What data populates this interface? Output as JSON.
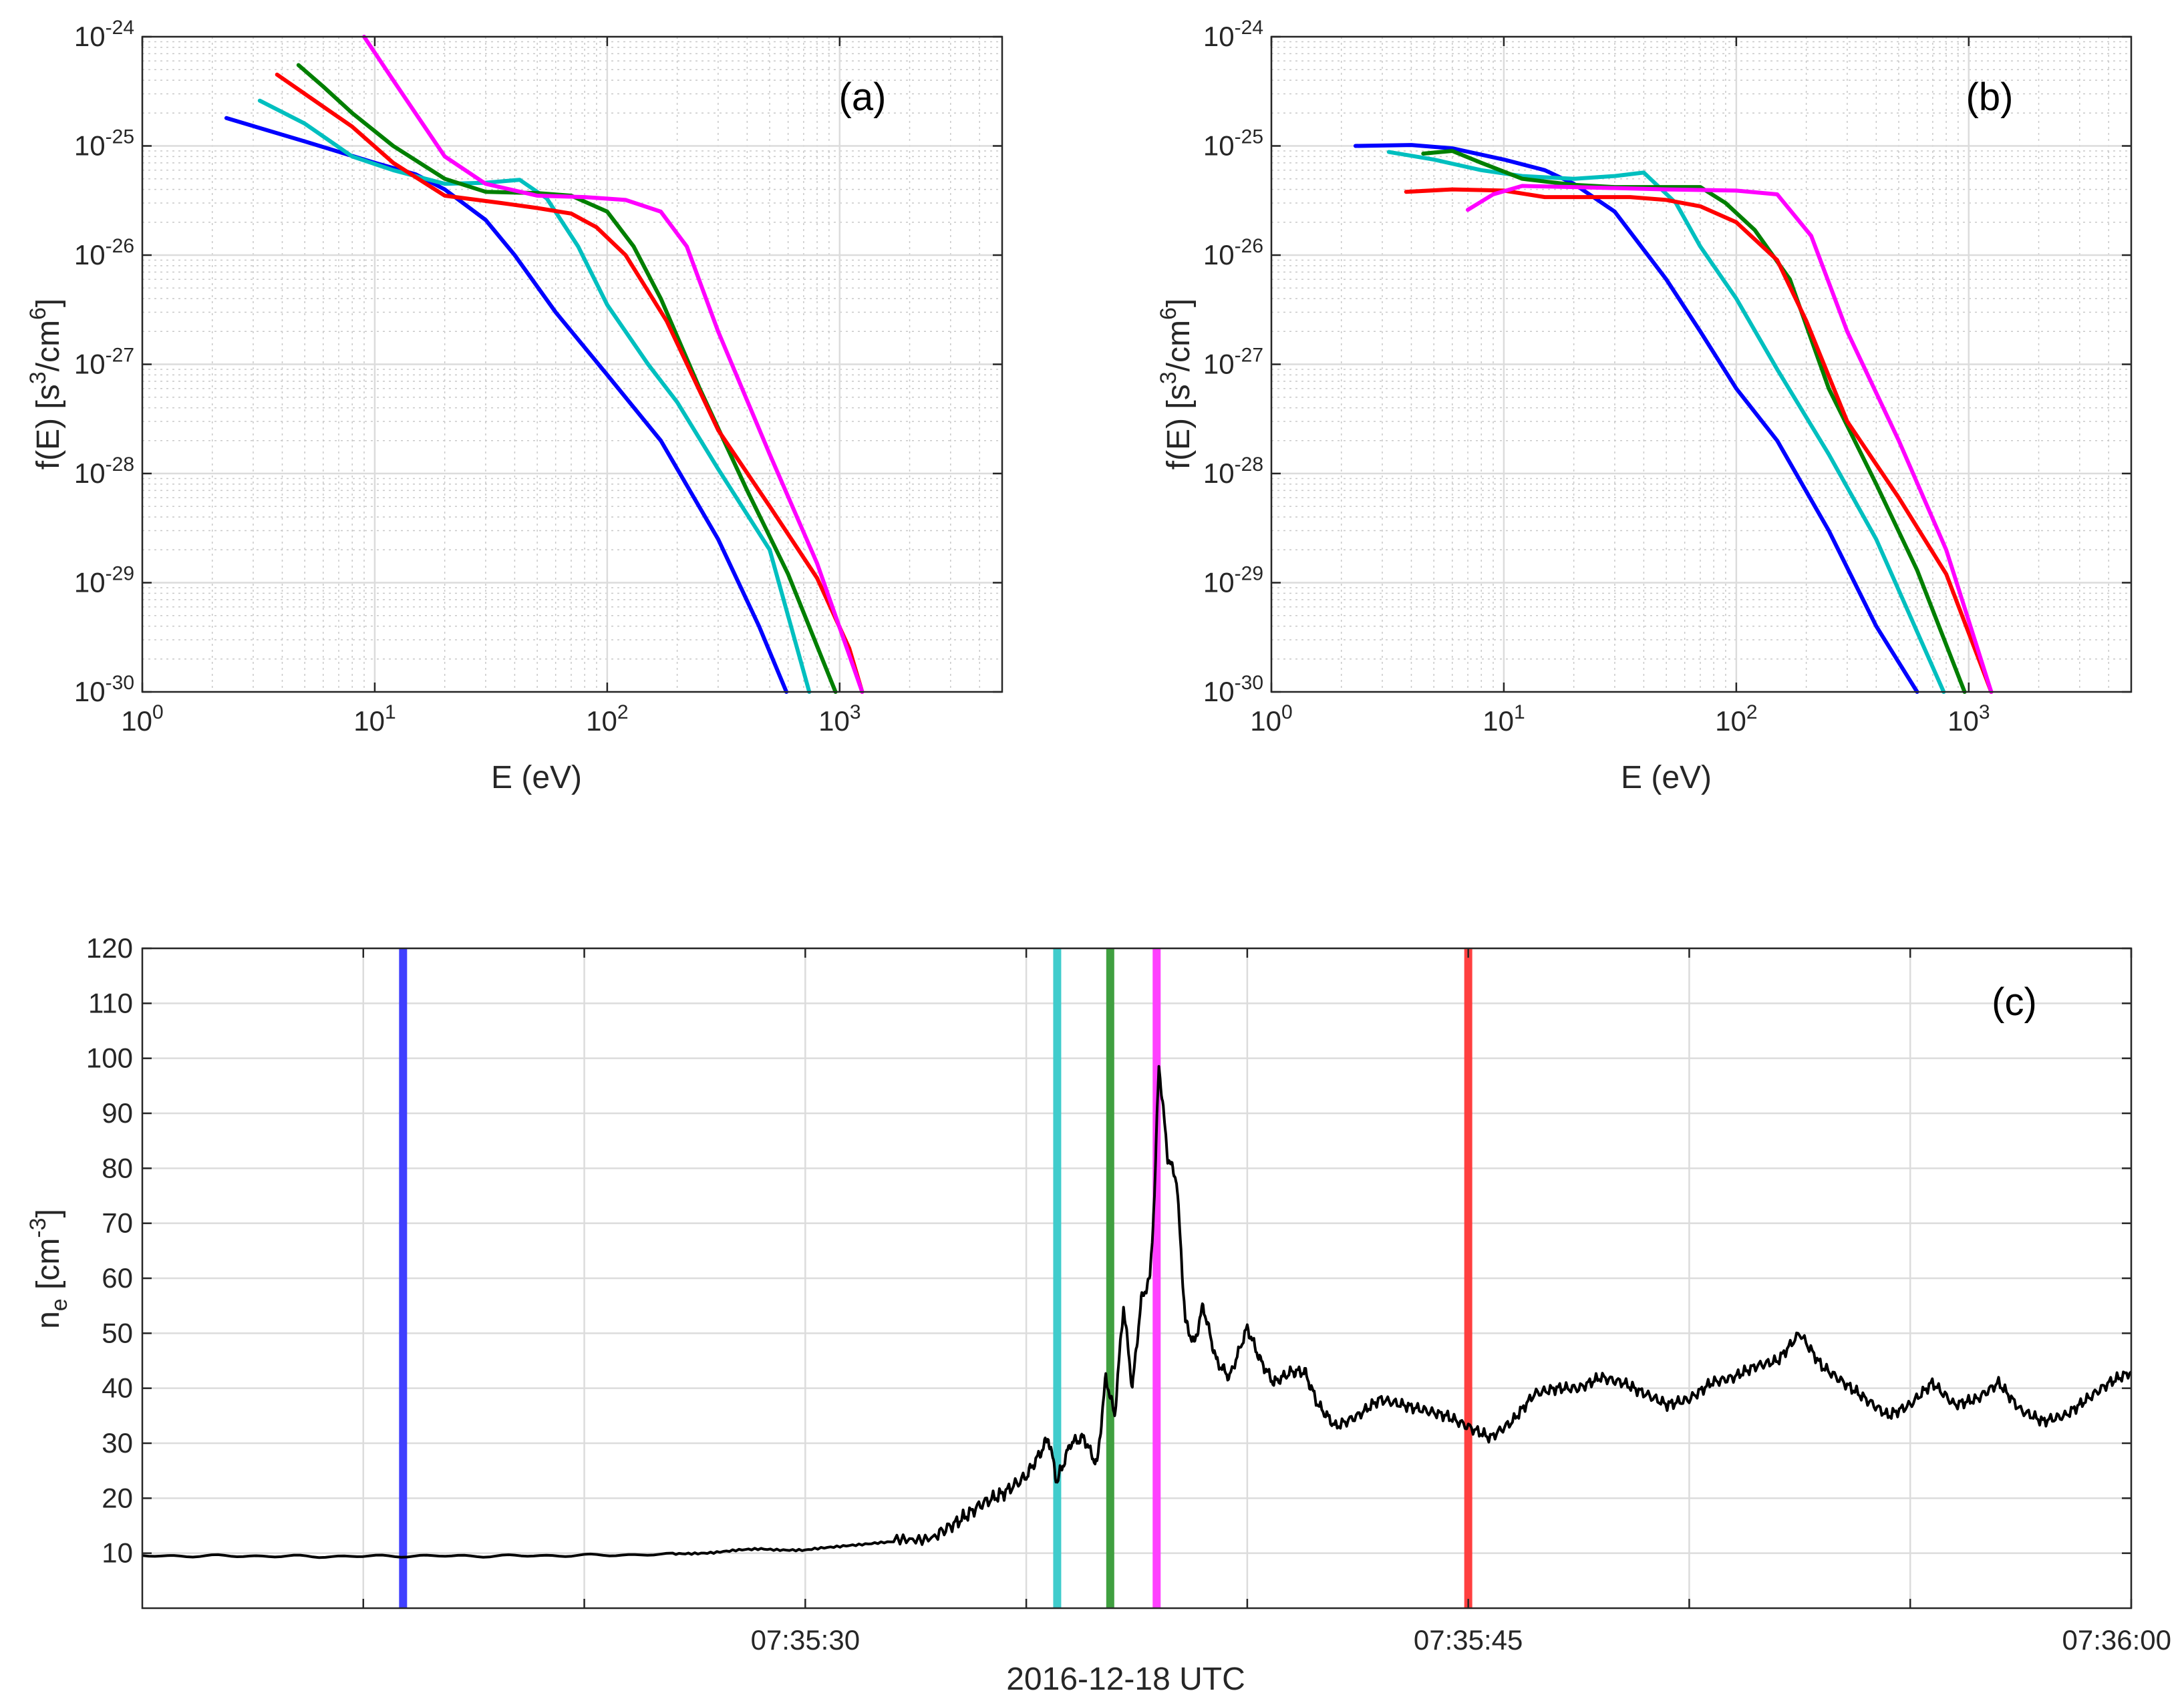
{
  "colors": {
    "blue": "#0000ff",
    "cyan": "#00bfbf",
    "green": "#007f00",
    "red": "#ff0000",
    "magenta": "#ff00ff",
    "marker_blue": "#4040ff",
    "marker_cyan": "#40cccc",
    "marker_green": "#40a040",
    "marker_magenta": "#ff40ff",
    "marker_red": "#ff4040",
    "density": "#000000"
  },
  "chart_data": [
    {
      "id": "a",
      "type": "line",
      "panel_label": "(a)",
      "xlabel": "E (eV)",
      "ylabel": "f(E) [s",
      "ylabel_sup1": "3",
      "ylabel_mid": "/cm",
      "ylabel_sup2": "6",
      "ylabel_end": "]",
      "xscale": "log",
      "yscale": "log",
      "xlim": [
        1,
        5000
      ],
      "ylim": [
        1e-30,
        1e-24
      ],
      "grid": true,
      "xticks": [
        {
          "base": "10",
          "exp": "0"
        },
        {
          "base": "10",
          "exp": "1"
        },
        {
          "base": "10",
          "exp": "2"
        },
        {
          "base": "10",
          "exp": "3"
        }
      ],
      "yticks": [
        {
          "base": "10",
          "exp": "-30"
        },
        {
          "base": "10",
          "exp": "-29"
        },
        {
          "base": "10",
          "exp": "-28"
        },
        {
          "base": "10",
          "exp": "-27"
        },
        {
          "base": "10",
          "exp": "-26"
        },
        {
          "base": "10",
          "exp": "-25"
        },
        {
          "base": "10",
          "exp": "-24"
        }
      ],
      "series": [
        {
          "name": "blue",
          "color": "#0000ff",
          "x": [
            2.3,
            5,
            10,
            15,
            20,
            30,
            40,
            60,
            100,
            170,
            300,
            450,
            590
          ],
          "y": [
            1.8e-25,
            1.1e-25,
            7e-26,
            5.5e-26,
            4e-26,
            2.1e-26,
            1e-26,
            3e-27,
            8e-28,
            2e-28,
            2.5e-29,
            4e-30,
            1e-30
          ]
        },
        {
          "name": "cyan",
          "color": "#00bfbf",
          "x": [
            3.2,
            5,
            8,
            12,
            20,
            30,
            42,
            55,
            75,
            100,
            150,
            200,
            300,
            500,
            740
          ],
          "y": [
            2.6e-25,
            1.6e-25,
            8e-26,
            6e-26,
            4.5e-26,
            4.6e-26,
            4.9e-26,
            3.3e-26,
            1.2e-26,
            3.5e-27,
            1e-27,
            4.5e-28,
            1.1e-28,
            2e-29,
            1e-30
          ]
        },
        {
          "name": "green",
          "color": "#007f00",
          "x": [
            4.7,
            6,
            8,
            12,
            20,
            30,
            50,
            70,
            100,
            130,
            170,
            250,
            400,
            600,
            960
          ],
          "y": [
            5.5e-25,
            3.5e-25,
            2e-25,
            1e-25,
            5e-26,
            3.8e-26,
            3.7e-26,
            3.5e-26,
            2.5e-26,
            1.2e-26,
            4e-27,
            6e-28,
            7e-29,
            1.2e-29,
            1e-30
          ]
        },
        {
          "name": "red",
          "color": "#ff0000",
          "x": [
            3.8,
            5,
            8,
            12,
            20,
            35,
            50,
            70,
            90,
            120,
            180,
            300,
            500,
            800,
            1100,
            1250
          ],
          "y": [
            4.5e-25,
            3e-25,
            1.5e-25,
            7e-26,
            3.5e-26,
            3e-26,
            2.7e-26,
            2.4e-26,
            1.8e-26,
            1e-26,
            2.5e-27,
            2.5e-28,
            5e-29,
            1.1e-29,
            2.5e-30,
            1e-30
          ]
        },
        {
          "name": "magenta",
          "color": "#ff00ff",
          "x": [
            9,
            12,
            20,
            30,
            50,
            80,
            120,
            170,
            220,
            300,
            500,
            800,
            1250
          ],
          "y": [
            1e-24,
            4e-25,
            8e-26,
            4.5e-26,
            3.5e-26,
            3.4e-26,
            3.2e-26,
            2.5e-26,
            1.2e-26,
            2e-27,
            1.5e-28,
            1.5e-29,
            1e-30
          ]
        }
      ]
    },
    {
      "id": "b",
      "type": "line",
      "panel_label": "(b)",
      "xlabel": "E (eV)",
      "ylabel": "f(E) [s",
      "ylabel_sup1": "3",
      "ylabel_mid": "/cm",
      "ylabel_sup2": "6",
      "ylabel_end": "]",
      "xscale": "log",
      "yscale": "log",
      "xlim": [
        1,
        5000
      ],
      "ylim": [
        1e-30,
        1e-24
      ],
      "grid": true,
      "xticks": [
        {
          "base": "10",
          "exp": "0"
        },
        {
          "base": "10",
          "exp": "1"
        },
        {
          "base": "10",
          "exp": "2"
        },
        {
          "base": "10",
          "exp": "3"
        }
      ],
      "yticks": [
        {
          "base": "10",
          "exp": "-30"
        },
        {
          "base": "10",
          "exp": "-29"
        },
        {
          "base": "10",
          "exp": "-28"
        },
        {
          "base": "10",
          "exp": "-27"
        },
        {
          "base": "10",
          "exp": "-26"
        },
        {
          "base": "10",
          "exp": "-25"
        },
        {
          "base": "10",
          "exp": "-24"
        }
      ],
      "series": [
        {
          "name": "blue",
          "color": "#0000ff",
          "x": [
            2.3,
            4,
            6,
            10,
            15,
            20,
            30,
            50,
            70,
            100,
            150,
            250,
            400,
            600
          ],
          "y": [
            1e-25,
            1.02e-25,
            9.5e-26,
            7.5e-26,
            6e-26,
            4.5e-26,
            2.5e-26,
            6e-27,
            2e-27,
            6e-28,
            2e-28,
            3e-29,
            4e-30,
            1e-30
          ]
        },
        {
          "name": "cyan",
          "color": "#00bfbf",
          "x": [
            3.2,
            5,
            8,
            12,
            20,
            30,
            40,
            55,
            70,
            100,
            150,
            250,
            400,
            780
          ],
          "y": [
            8.8e-26,
            7.5e-26,
            6e-26,
            5.3e-26,
            5e-26,
            5.3e-26,
            5.7e-26,
            3e-26,
            1.2e-26,
            4e-27,
            9e-28,
            1.5e-28,
            2.5e-29,
            1e-30
          ]
        },
        {
          "name": "green",
          "color": "#007f00",
          "x": [
            4.5,
            6,
            8,
            12,
            20,
            30,
            50,
            70,
            90,
            120,
            170,
            250,
            400,
            600,
            960
          ],
          "y": [
            8.5e-26,
            9e-26,
            7e-26,
            5e-26,
            4.4e-26,
            4.2e-26,
            4.2e-26,
            4.2e-26,
            3e-26,
            1.7e-26,
            6e-27,
            6e-28,
            8e-29,
            1.3e-29,
            1e-30
          ]
        },
        {
          "name": "red",
          "color": "#ff0000",
          "x": [
            3.8,
            6,
            10,
            15,
            20,
            35,
            50,
            70,
            100,
            150,
            200,
            300,
            500,
            800,
            1250
          ],
          "y": [
            3.8e-26,
            4e-26,
            3.9e-26,
            3.4e-26,
            3.4e-26,
            3.4e-26,
            3.2e-26,
            2.8e-26,
            2e-26,
            9e-27,
            2.5e-27,
            3e-28,
            6e-29,
            1.2e-29,
            1e-30
          ]
        },
        {
          "name": "magenta",
          "color": "#ff00ff",
          "x": [
            7,
            9,
            12,
            20,
            50,
            100,
            150,
            210,
            300,
            500,
            800,
            1250
          ],
          "y": [
            2.6e-26,
            3.6e-26,
            4.3e-26,
            4.2e-26,
            4e-26,
            3.9e-26,
            3.6e-26,
            1.5e-26,
            2e-27,
            2e-28,
            2e-29,
            1e-30
          ]
        }
      ]
    },
    {
      "id": "c",
      "type": "line",
      "panel_label": "(c)",
      "xlabel": "2016-12-18 UTC",
      "ylabel": "n",
      "ylabel_sub": "e",
      "ylabel_unit": " [cm",
      "ylabel_sup": "-3",
      "ylabel_end": "]",
      "x_unit": "seconds after 07:35:15",
      "xlim": [
        0,
        45
      ],
      "ylim": [
        0,
        120
      ],
      "grid": true,
      "yticks": [
        10,
        20,
        30,
        40,
        50,
        60,
        70,
        80,
        90,
        100,
        110,
        120
      ],
      "xticks": [
        5,
        10,
        15,
        20,
        25,
        30,
        35,
        40,
        45
      ],
      "xtick_labels": [
        {
          "t": 15,
          "label": "07:35:30"
        },
        {
          "t": 30,
          "label": "07:35:45"
        },
        {
          "t": 45,
          "label": "07:36:00"
        }
      ],
      "markers": [
        {
          "name": "blue",
          "t": 5.9,
          "color": "#4040ff"
        },
        {
          "name": "cyan",
          "t": 20.7,
          "color": "#40cccc"
        },
        {
          "name": "green",
          "t": 21.9,
          "color": "#40a040"
        },
        {
          "name": "magenta",
          "t": 22.95,
          "color": "#ff40ff"
        },
        {
          "name": "red",
          "t": 30.0,
          "color": "#ff4040"
        }
      ],
      "series": [
        {
          "name": "n_e",
          "color": "#000000",
          "t": [
            0,
            2,
            4,
            6,
            8,
            10,
            12,
            13,
            14,
            15,
            16,
            17,
            18,
            18.5,
            19,
            19.5,
            20,
            20.3,
            20.5,
            20.7,
            21.0,
            21.3,
            21.6,
            21.8,
            22.0,
            22.2,
            22.4,
            22.6,
            22.8,
            22.9,
            23.0,
            23.2,
            23.4,
            23.6,
            23.8,
            24.0,
            24.3,
            24.6,
            25.0,
            25.3,
            25.6,
            26.0,
            26.3,
            26.6,
            27.0,
            27.5,
            28.0,
            28.5,
            29.0,
            29.5,
            30.0,
            30.5,
            31.0,
            31.5,
            32.0,
            32.5,
            33.0,
            33.5,
            34.0,
            34.5,
            35.0,
            35.5,
            36.0,
            36.5,
            37.0,
            37.5,
            38.0,
            38.5,
            39.0,
            39.5,
            40.0,
            40.5,
            41.0,
            41.5,
            42.0,
            42.5,
            43.0,
            43.5,
            44.0,
            44.5,
            45.0
          ],
          "y": [
            9.5,
            9.5,
            9.4,
            9.5,
            9.5,
            9.6,
            9.8,
            10.2,
            10.8,
            10.5,
            11.5,
            12.0,
            13.5,
            16,
            19,
            21,
            24,
            28,
            31,
            23,
            30,
            31,
            26,
            42,
            35,
            55,
            40,
            56,
            60,
            75,
            99,
            82,
            78,
            52,
            48,
            55,
            45,
            42,
            51,
            45,
            41,
            43,
            43,
            37,
            33,
            35,
            38,
            37,
            36,
            35,
            33,
            31,
            34,
            39,
            40,
            40,
            42,
            41,
            39,
            37,
            38,
            41,
            42,
            44,
            45,
            50,
            44,
            41,
            38,
            35,
            37,
            41,
            37,
            38,
            41,
            36,
            34,
            35,
            38,
            41,
            43
          ]
        }
      ]
    }
  ]
}
